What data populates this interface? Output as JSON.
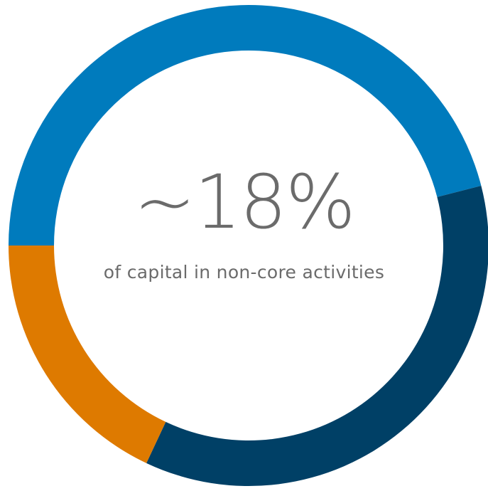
{
  "chart_data": {
    "type": "pie",
    "donut": true,
    "center_value": "~18%",
    "center_caption": "of capital in non-core activities",
    "slices": [
      {
        "value": 46,
        "color": "#007bbd"
      },
      {
        "value": 36,
        "color": "#004066"
      },
      {
        "value": 18,
        "color": "#de7a00"
      }
    ],
    "start_angle_deg": 180,
    "direction": "clockwise"
  }
}
